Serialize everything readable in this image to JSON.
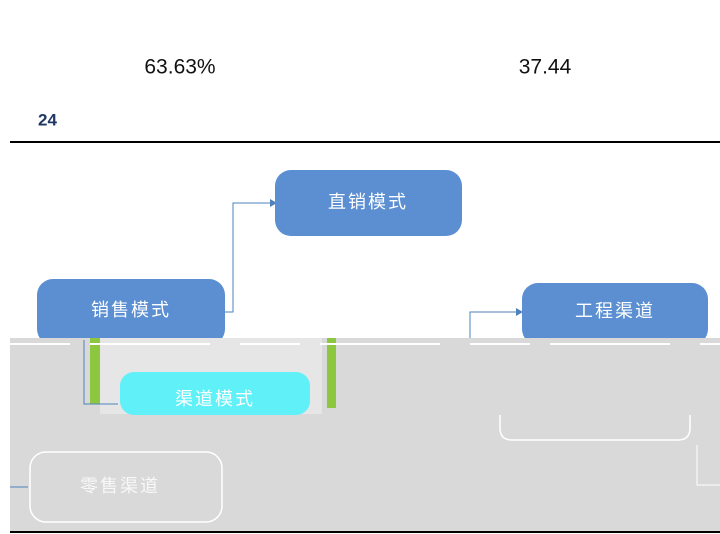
{
  "figures": {
    "percentage": "63.63%",
    "value": "37.44"
  },
  "page_number": "24",
  "diagram": {
    "root": "销售模式",
    "direct": "直销模式",
    "channel": "渠道模式",
    "engineering": "工程渠道",
    "retail": "零售渠道"
  }
}
